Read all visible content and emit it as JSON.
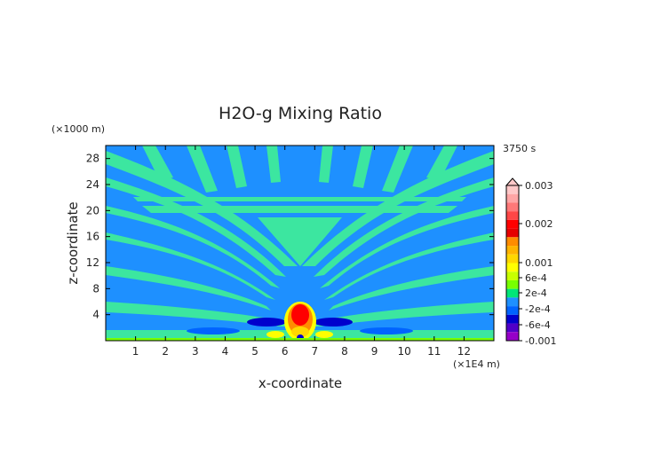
{
  "chart_data": {
    "type": "heatmap",
    "title": "H2O-g Mixing Ratio",
    "xlabel": "x-coordinate",
    "ylabel": "z-coordinate",
    "x_unit": "(×1E4 m)",
    "y_unit": "(×1000 m)",
    "time_label": "3750 s",
    "xlim": [
      0,
      13
    ],
    "ylim": [
      0,
      30
    ],
    "x_ticks": [
      "1",
      "2",
      "3",
      "4",
      "5",
      "6",
      "7",
      "8",
      "9",
      "10",
      "11",
      "12"
    ],
    "y_ticks": [
      "4",
      "8",
      "12",
      "16",
      "20",
      "24",
      "28"
    ],
    "colorbar": {
      "labels": [
        "0.003",
        "0.002",
        "0.001",
        "6e-4",
        "2e-4",
        "-2e-4",
        "-6e-4",
        "-0.001"
      ],
      "colors": [
        "#ffc8c8",
        "#ffa5a5",
        "#ff7878",
        "#ff4646",
        "#ff0000",
        "#e60000",
        "#ff8c00",
        "#ffb400",
        "#ffd700",
        "#ffff00",
        "#c8ff00",
        "#78ff00",
        "#00e678",
        "#1e90ff",
        "#0064ff",
        "#0000cd",
        "#5000c8",
        "#9600c8"
      ]
    },
    "background_color": "#1e90ff",
    "band_color": "#3ce6a0"
  }
}
